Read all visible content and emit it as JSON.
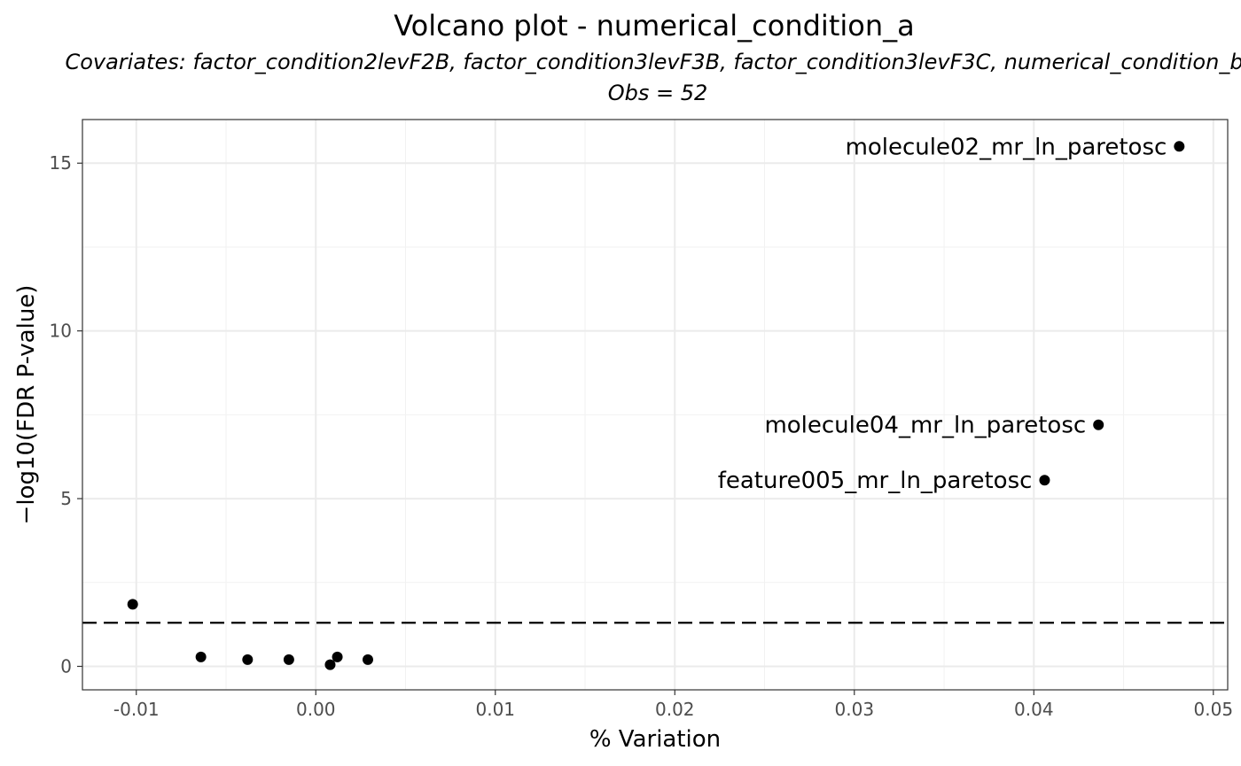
{
  "chart_data": {
    "type": "scatter",
    "title": "Volcano plot - numerical_condition_a",
    "subtitle": "Covariates: factor_condition2levF2B, factor_condition3levF3B, factor_condition3levF3C, numerical_condition_b",
    "subtitle2": "Obs = 52",
    "xlabel": "% Variation",
    "ylabel": "−log10(FDR P-value)",
    "xlim": [
      -0.013,
      0.0508
    ],
    "ylim": [
      -0.7,
      16.3
    ],
    "x_ticks": [
      -0.01,
      0.0,
      0.01,
      0.02,
      0.03,
      0.04,
      0.05
    ],
    "x_tick_labels": [
      "-0.01",
      "0.00",
      "0.01",
      "0.02",
      "0.03",
      "0.04",
      "0.05"
    ],
    "y_ticks": [
      0,
      5,
      10,
      15
    ],
    "y_tick_labels": [
      "0",
      "5",
      "10",
      "15"
    ],
    "threshold_y": 1.3,
    "grid": true,
    "legend": "none",
    "points": [
      {
        "x": 0.0481,
        "y": 15.5,
        "label": "molecule02_mr_ln_paretosc"
      },
      {
        "x": 0.0436,
        "y": 7.2,
        "label": "molecule04_mr_ln_paretosc"
      },
      {
        "x": 0.0406,
        "y": 5.55,
        "label": "feature005_mr_ln_paretosc"
      },
      {
        "x": -0.0102,
        "y": 1.85,
        "label": ""
      },
      {
        "x": -0.0064,
        "y": 0.28,
        "label": ""
      },
      {
        "x": -0.0038,
        "y": 0.2,
        "label": ""
      },
      {
        "x": -0.0015,
        "y": 0.2,
        "label": ""
      },
      {
        "x": 0.0008,
        "y": 0.05,
        "label": ""
      },
      {
        "x": 0.0012,
        "y": 0.28,
        "label": ""
      },
      {
        "x": 0.0029,
        "y": 0.2,
        "label": ""
      }
    ]
  }
}
